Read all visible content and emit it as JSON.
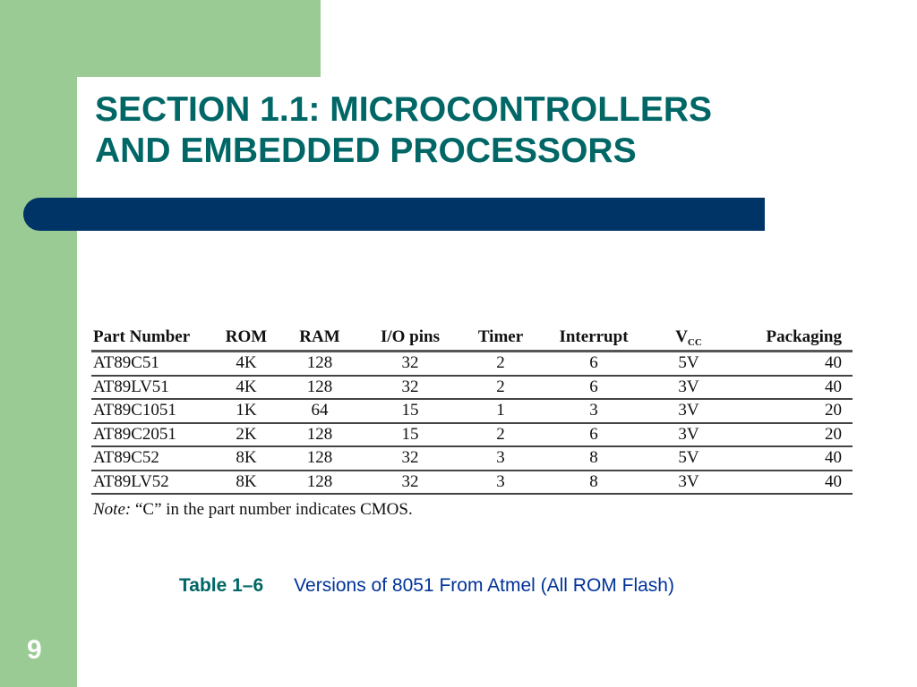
{
  "slide": {
    "title_line1": "SECTION 1.1: MICROCONTROLLERS",
    "title_line2": "AND EMBEDDED PROCESSORS",
    "page_number": "9"
  },
  "table": {
    "headers": [
      "Part Number",
      "ROM",
      "RAM",
      "I/O pins",
      "Timer",
      "Interrupt",
      "V",
      "Packaging"
    ],
    "vcc_sub": "CC",
    "rows": [
      [
        "AT89C51",
        "4K",
        "128",
        "32",
        "2",
        "6",
        "5V",
        "40"
      ],
      [
        "AT89LV51",
        "4K",
        "128",
        "32",
        "2",
        "6",
        "3V",
        "40"
      ],
      [
        "AT89C1051",
        "1K",
        "64",
        "15",
        "1",
        "3",
        "3V",
        "20"
      ],
      [
        "AT89C2051",
        "2K",
        "128",
        "15",
        "2",
        "6",
        "3V",
        "20"
      ],
      [
        "AT89C52",
        "8K",
        "128",
        "32",
        "3",
        "8",
        "5V",
        "40"
      ],
      [
        "AT89LV52",
        "8K",
        "128",
        "32",
        "3",
        "8",
        "3V",
        "40"
      ]
    ],
    "note_label": "Note:",
    "note_text": " “C” in the part number indicates CMOS."
  },
  "caption": {
    "label": "Table 1–6",
    "text": "Versions of 8051 From Atmel (All ROM Flash)"
  },
  "colors": {
    "green": "#9bcb94",
    "title_teal": "#006666",
    "bar_navy": "#003366",
    "caption_blue": "#003399"
  }
}
